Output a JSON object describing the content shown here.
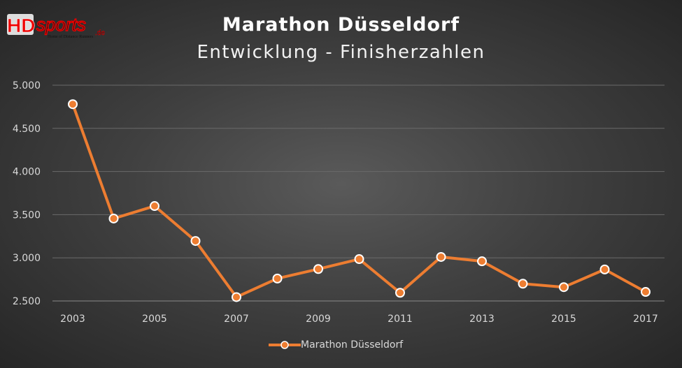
{
  "logo": {
    "text": "HDsports.de",
    "tagline": "Home of Distance Runners"
  },
  "chart_data": {
    "type": "line",
    "title": "Marathon Düsseldorf",
    "subtitle": "Entwicklung - Finisherzahlen",
    "x": [
      2003,
      2004,
      2005,
      2006,
      2007,
      2008,
      2009,
      2010,
      2011,
      2012,
      2013,
      2014,
      2015,
      2016,
      2017
    ],
    "xtick_labels": [
      "2003",
      "2005",
      "2007",
      "2009",
      "2011",
      "2013",
      "2015",
      "2017"
    ],
    "series": [
      {
        "name": "Marathon Düsseldorf",
        "color": "#ed7d31",
        "values": [
          4780,
          3455,
          3600,
          3195,
          2545,
          2760,
          2870,
          2985,
          2595,
          3010,
          2960,
          2700,
          2660,
          2865,
          2605
        ]
      }
    ],
    "ylim": [
      2500,
      5000
    ],
    "ytick_labels": [
      "2.500",
      "3.000",
      "3.500",
      "4.000",
      "4.500",
      "5.000"
    ],
    "yticks": [
      2500,
      3000,
      3500,
      4000,
      4500,
      5000
    ],
    "grid": true,
    "legend": "bottom"
  }
}
